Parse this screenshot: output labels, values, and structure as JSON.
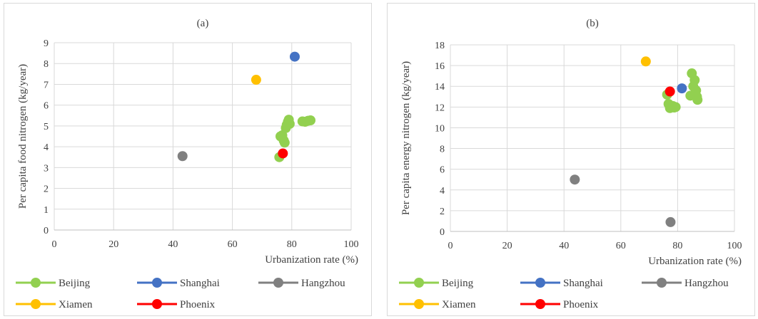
{
  "chart_data": [
    {
      "type": "scatter",
      "title": "(a)",
      "xlabel": "Urbanization rate (%)",
      "ylabel": "Per capita food nitrogen (kg/year)",
      "xlim": [
        0,
        100
      ],
      "ylim": [
        0,
        9
      ],
      "xticks": [
        0,
        20,
        40,
        60,
        80,
        100
      ],
      "yticks": [
        0,
        1,
        2,
        3,
        4,
        5,
        6,
        7,
        8,
        9
      ],
      "grid": true,
      "legend_position": "bottom",
      "series": [
        {
          "name": "Beijing",
          "color": "#92d050",
          "x": [
            75.8,
            76.2,
            76.8,
            77.3,
            77.6,
            78.0,
            78.3,
            78.7,
            79.0,
            79.3,
            83.6,
            84.5,
            85.5,
            86.3
          ],
          "y": [
            3.5,
            4.5,
            4.55,
            4.3,
            4.2,
            4.9,
            5.05,
            5.2,
            5.3,
            5.1,
            5.22,
            5.2,
            5.25,
            5.27
          ]
        },
        {
          "name": "Shanghai",
          "color": "#4472c4",
          "x": [
            81.0
          ],
          "y": [
            8.33
          ]
        },
        {
          "name": "Hangzhou",
          "color": "#808080",
          "x": [
            43.2
          ],
          "y": [
            3.55
          ]
        },
        {
          "name": "Xiamen",
          "color": "#ffc000",
          "x": [
            68.0
          ],
          "y": [
            7.22
          ]
        },
        {
          "name": "Phoenix",
          "color": "#ff0000",
          "x": [
            77.0
          ],
          "y": [
            3.68
          ]
        }
      ]
    },
    {
      "type": "scatter",
      "title": "(b)",
      "xlabel": "Urbanization rate (%)",
      "ylabel": "Per capita energy nitrogen (kg/year)",
      "xlim": [
        0,
        100
      ],
      "ylim": [
        0,
        18
      ],
      "xticks": [
        0,
        20,
        40,
        60,
        80,
        100
      ],
      "yticks": [
        0,
        2,
        4,
        6,
        8,
        10,
        12,
        14,
        16,
        18
      ],
      "grid": true,
      "legend_position": "bottom",
      "series": [
        {
          "name": "Beijing",
          "color": "#92d050",
          "x": [
            76.3,
            76.8,
            77.3,
            77.8,
            78.3,
            78.8,
            79.3,
            84.5,
            85.0,
            85.5,
            86.0,
            86.5,
            86.8,
            87.0
          ],
          "y": [
            13.2,
            12.3,
            11.9,
            12.0,
            12.1,
            11.95,
            12.0,
            13.1,
            15.25,
            14.0,
            14.6,
            13.6,
            13.0,
            12.7
          ]
        },
        {
          "name": "Shanghai",
          "color": "#4472c4",
          "x": [
            81.5
          ],
          "y": [
            13.8
          ]
        },
        {
          "name": "Hangzhou",
          "color": "#808080",
          "x": [
            43.8,
            77.5
          ],
          "y": [
            5.0,
            0.9
          ]
        },
        {
          "name": "Xiamen",
          "color": "#ffc000",
          "x": [
            68.8
          ],
          "y": [
            16.4
          ]
        },
        {
          "name": "Phoenix",
          "color": "#ff0000",
          "x": [
            77.3
          ],
          "y": [
            13.5
          ]
        }
      ]
    }
  ]
}
